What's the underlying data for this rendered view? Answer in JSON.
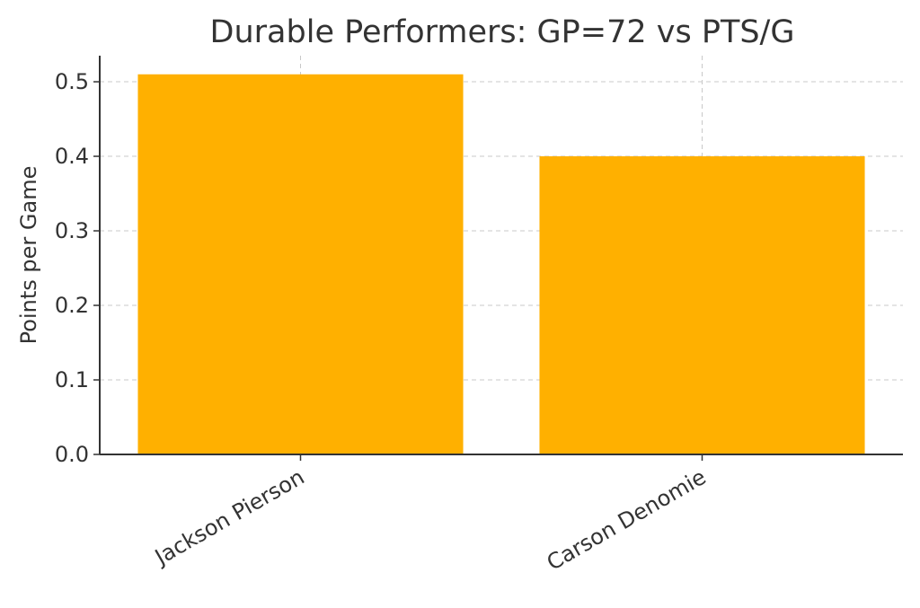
{
  "chart_data": {
    "type": "bar",
    "title": "Durable Performers: GP=72 vs PTS/G",
    "xlabel": "",
    "ylabel": "Points per Game",
    "categories": [
      "Jackson Pierson",
      "Carson Denomie"
    ],
    "values": [
      0.51,
      0.4
    ],
    "ylim": [
      0,
      0.535
    ],
    "yticks": [
      "0.0",
      "0.1",
      "0.2",
      "0.3",
      "0.4",
      "0.5"
    ],
    "ytick_values": [
      0,
      0.1,
      0.2,
      0.3,
      0.4,
      0.5
    ],
    "grid": true,
    "bar_color": "#FFB000",
    "legend": "none"
  }
}
